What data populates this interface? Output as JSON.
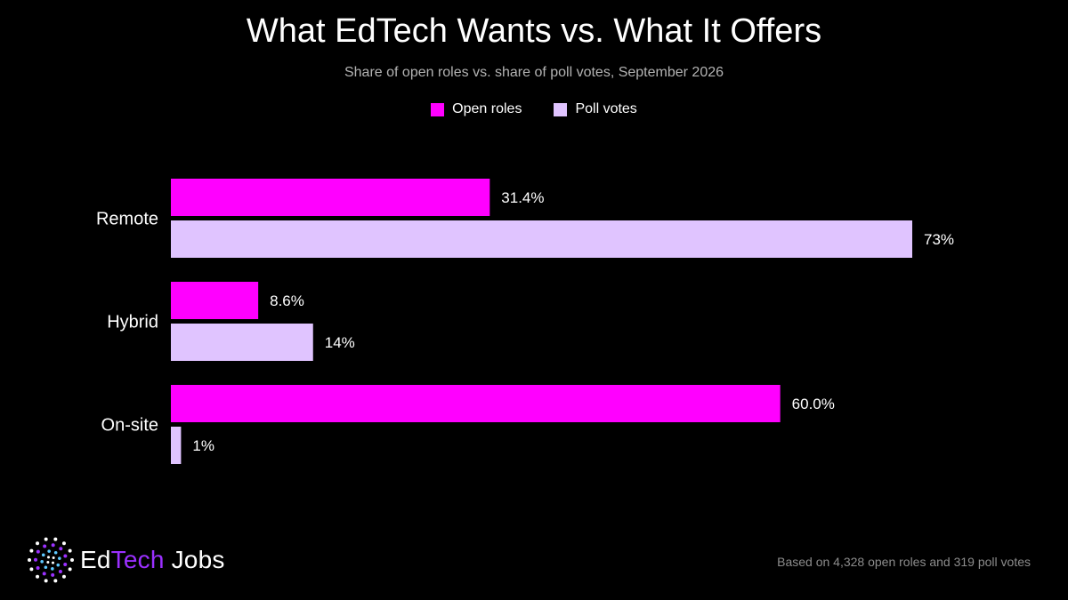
{
  "colors": {
    "background": "#000000",
    "open_roles": "#ff00ff",
    "poll_votes": "#e0c4ff",
    "brand_accent": "#9b30ff"
  },
  "brand": {
    "name_part1": "Ed",
    "name_part2": "Tech",
    "name_part3": "Jobs",
    "logo_icon": "dotted-circle-logo-icon"
  },
  "footnote": "Based on 4,328 open roles and 319 poll votes",
  "chart_data": {
    "type": "bar",
    "orientation": "horizontal",
    "title": "What EdTech Wants vs. What It Offers",
    "subtitle": "Share of open roles vs. share of poll votes, September 2026",
    "categories": [
      "Remote",
      "Hybrid",
      "On-site"
    ],
    "series": [
      {
        "name": "Open roles",
        "values": [
          31.4,
          8.6,
          60.0
        ],
        "labels": [
          "31.4%",
          "8.6%",
          "60.0%"
        ]
      },
      {
        "name": "Poll votes",
        "values": [
          73,
          14,
          1
        ],
        "labels": [
          "73%",
          "14%",
          "1%"
        ]
      }
    ],
    "xlim": [
      0,
      80
    ],
    "unit": "%",
    "grid": false,
    "legend_position": "top-center"
  }
}
